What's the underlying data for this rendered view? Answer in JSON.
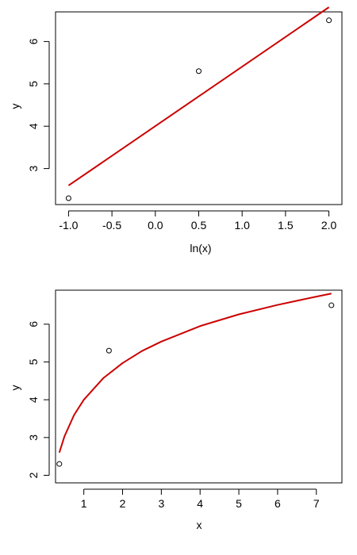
{
  "chart_data": [
    {
      "type": "scatter",
      "title": "",
      "xlabel": "ln(x)",
      "ylabel": "y",
      "xlim": [
        -1.15,
        2.15
      ],
      "ylim": [
        2.15,
        6.7
      ],
      "x_ticks": [
        -1.0,
        -0.5,
        0.0,
        0.5,
        1.0,
        1.5,
        2.0
      ],
      "x_tick_labels": [
        "-1.0",
        "-0.5",
        "0.0",
        "0.5",
        "1.0",
        "1.5",
        "2.0"
      ],
      "y_ticks": [
        3,
        4,
        5,
        6
      ],
      "y_tick_labels": [
        "3",
        "4",
        "5",
        "6"
      ],
      "points": {
        "x": [
          -1.0,
          0.5,
          2.0
        ],
        "y": [
          2.3,
          5.3,
          6.5
        ]
      },
      "fit_line": {
        "color": "#CC0000",
        "x": [
          -1.0,
          2.0
        ],
        "y": [
          2.6,
          6.81
        ]
      },
      "grid": false
    },
    {
      "type": "scatter",
      "title": "",
      "xlabel": "x",
      "ylabel": "y",
      "xlim": [
        0.27,
        7.66
      ],
      "ylim": [
        1.8,
        6.9
      ],
      "x_ticks": [
        1,
        2,
        3,
        4,
        5,
        6,
        7
      ],
      "x_tick_labels": [
        "1",
        "2",
        "3",
        "4",
        "5",
        "6",
        "7"
      ],
      "y_ticks": [
        2,
        3,
        4,
        5,
        6
      ],
      "y_tick_labels": [
        "2",
        "3",
        "4",
        "5",
        "6"
      ],
      "points": {
        "x": [
          0.368,
          1.649,
          7.389
        ],
        "y": [
          2.3,
          5.3,
          6.5
        ]
      },
      "fit_curve": {
        "color": "#CC0000",
        "x": [
          0.368,
          0.5,
          0.75,
          1.0,
          1.5,
          2.0,
          2.5,
          3.0,
          4.0,
          5.0,
          6.0,
          7.0,
          7.389
        ],
        "y": [
          2.6,
          3.03,
          3.6,
          4.0,
          4.57,
          4.97,
          5.29,
          5.54,
          5.95,
          6.26,
          6.51,
          6.73,
          6.81
        ]
      },
      "grid": false
    }
  ]
}
